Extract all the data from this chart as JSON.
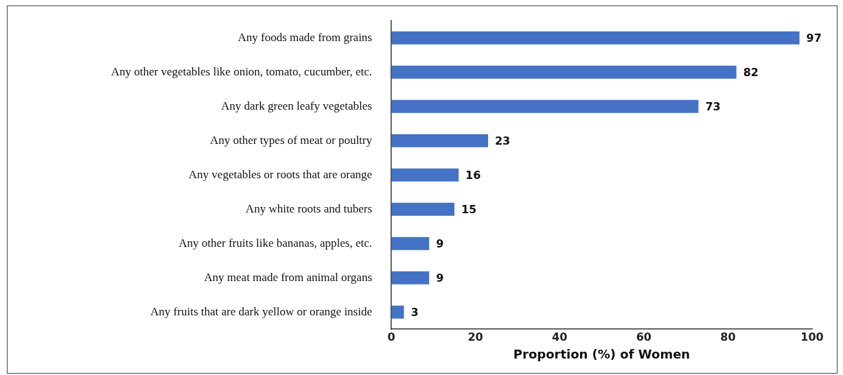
{
  "chart_data": {
    "type": "bar",
    "orientation": "horizontal",
    "xlabel": "Proportion (%) of Women",
    "categories": [
      "Any foods made from grains",
      "Any other vegetables like onion, tomato, cucumber, etc.",
      "Any dark green leafy vegetables",
      "Any other types of meat or poultry",
      "Any vegetables or roots that are orange",
      "Any white roots and tubers",
      "Any other fruits like bananas, apples, etc.",
      "Any meat made from animal organs",
      "Any fruits that are dark yellow or orange inside"
    ],
    "values": [
      97,
      82,
      73,
      23,
      16,
      15,
      9,
      9,
      3
    ],
    "color": "#4472c4",
    "xlim": [
      0,
      100
    ],
    "xticks": [
      0,
      20,
      40,
      60,
      80,
      100
    ],
    "grid": false,
    "legend": false,
    "data_labels": true
  }
}
